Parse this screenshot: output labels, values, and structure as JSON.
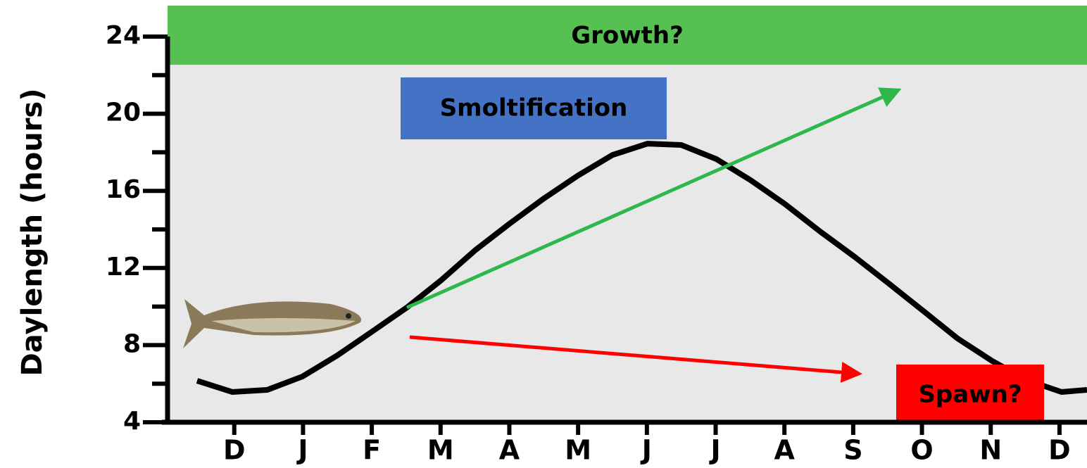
{
  "chart_data": {
    "type": "line",
    "y_label": "Daylength (hours)",
    "x": [
      -0.54,
      -0.03,
      0.48,
      0.99,
      1.5,
      2.02,
      2.51,
      3.01,
      3.51,
      4.0,
      4.5,
      5.0,
      5.5,
      6.01,
      6.5,
      7.01,
      7.51,
      8.01,
      8.52,
      9.02,
      9.52,
      10.02,
      10.52,
      11.02,
      11.52,
      12.03,
      12.4
    ],
    "series": [
      {
        "color": "#000000",
        "values": [
          6.15,
          5.57,
          5.68,
          6.37,
          7.47,
          8.74,
          9.95,
          11.37,
          12.94,
          14.29,
          15.6,
          16.8,
          17.86,
          18.45,
          18.38,
          17.65,
          16.55,
          15.31,
          13.89,
          12.58,
          11.19,
          9.77,
          8.34,
          7.18,
          6.19,
          5.57,
          5.68
        ]
      }
    ],
    "xlim": [
      -0.97,
      12.4
    ],
    "xticks": [
      {
        "value": 0,
        "label": "D"
      },
      {
        "value": 1,
        "label": "J"
      },
      {
        "value": 2,
        "label": "F"
      },
      {
        "value": 3,
        "label": "M"
      },
      {
        "value": 4,
        "label": "A"
      },
      {
        "value": 5,
        "label": "M"
      },
      {
        "value": 6,
        "label": "J"
      },
      {
        "value": 7,
        "label": "J"
      },
      {
        "value": 8,
        "label": "A"
      },
      {
        "value": 9,
        "label": "S"
      },
      {
        "value": 10,
        "label": "O"
      },
      {
        "value": 11,
        "label": "N"
      },
      {
        "value": 12,
        "label": "D"
      }
    ],
    "ylim": [
      4,
      24
    ],
    "yticks": [
      4,
      8,
      12,
      16,
      20,
      24
    ],
    "yticks_minor": [
      6,
      10,
      14,
      18,
      22
    ],
    "annotations": [
      "Growth?",
      "Smoltification",
      "Spawn?"
    ]
  }
}
